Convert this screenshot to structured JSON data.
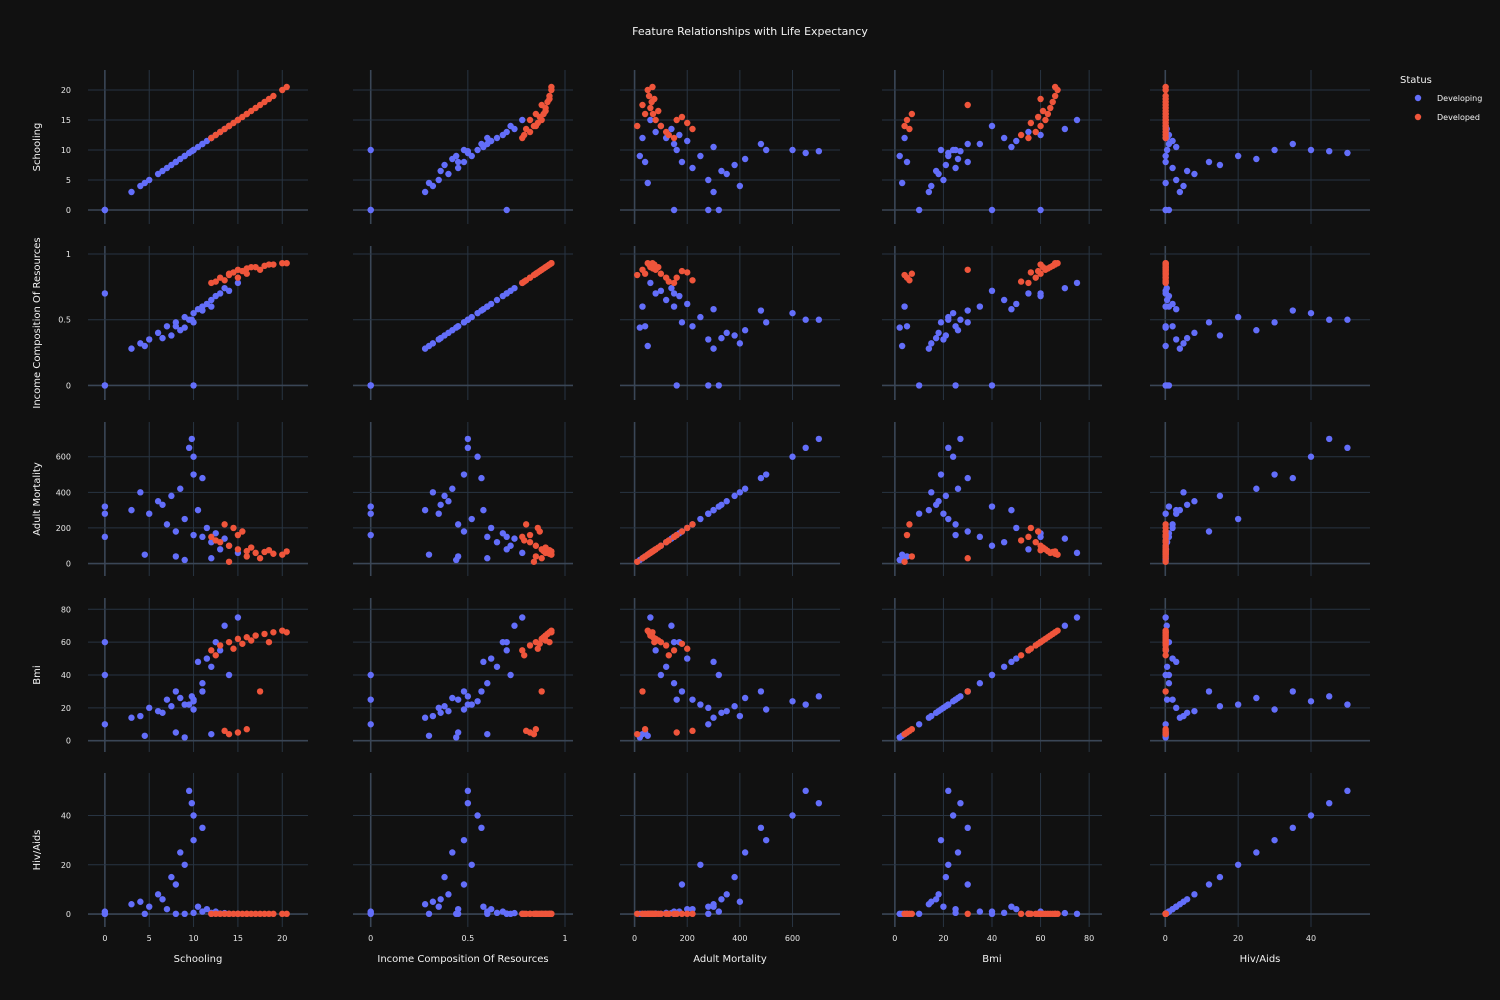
{
  "chart_data": {
    "type": "scatter",
    "title": "Feature Relationships with Life Expectancy",
    "features": [
      {
        "key": "schooling",
        "label": "Schooling",
        "range": [
          -1,
          22
        ],
        "ticks": [
          0,
          5,
          10,
          15,
          20
        ],
        "tick_labels": [
          "0",
          "5",
          "10",
          "15",
          "20"
        ]
      },
      {
        "key": "income",
        "label": "Income Composition Of Resources",
        "range": [
          -0.05,
          1.0
        ],
        "ticks": [
          0,
          0.5,
          1
        ],
        "tick_labels": [
          "0",
          "0.5",
          "1"
        ]
      },
      {
        "key": "adult_mortality",
        "label": "Adult Mortality",
        "range": [
          -25,
          750
        ],
        "ticks": [
          0,
          200,
          400,
          600
        ],
        "tick_labels": [
          "0",
          "200",
          "400",
          "600"
        ]
      },
      {
        "key": "bmi",
        "label": "Bmi",
        "range": [
          -2,
          82
        ],
        "ticks": [
          0,
          20,
          40,
          60,
          80
        ],
        "tick_labels": [
          "0",
          "20",
          "40",
          "60",
          "80"
        ]
      },
      {
        "key": "hiv_aids",
        "label": "Hiv/Aids",
        "range": [
          -2,
          54
        ],
        "ticks": [
          0,
          20,
          40
        ],
        "tick_labels": [
          "0",
          "20",
          "40"
        ]
      }
    ],
    "legend": {
      "title": "Status",
      "placement": "top-right",
      "entries": [
        {
          "name": "Developing",
          "color": "#636efa"
        },
        {
          "name": "Developed",
          "color": "#ef553b"
        }
      ]
    },
    "series": [
      {
        "name": "Developing",
        "color": "#636efa",
        "points": [
          [
            3.0,
            0.28,
            300,
            14,
            4
          ],
          [
            4.0,
            0.32,
            400,
            15,
            5
          ],
          [
            5.0,
            0.35,
            280,
            20,
            3
          ],
          [
            6.0,
            0.4,
            350,
            18,
            8
          ],
          [
            7.0,
            0.45,
            220,
            25,
            2
          ],
          [
            8.0,
            0.48,
            180,
            30,
            12
          ],
          [
            9.0,
            0.52,
            250,
            22,
            20
          ],
          [
            10.0,
            0.55,
            600,
            24,
            40
          ],
          [
            10.0,
            0.48,
            500,
            19,
            30
          ],
          [
            11.0,
            0.6,
            150,
            35,
            1
          ],
          [
            12.0,
            0.65,
            120,
            45,
            0.5
          ],
          [
            13.0,
            0.7,
            80,
            55,
            0.2
          ],
          [
            14.0,
            0.72,
            100,
            40,
            0.1
          ],
          [
            9.5,
            0.5,
            650,
            22,
            50
          ],
          [
            8.5,
            0.42,
            420,
            26,
            25
          ],
          [
            7.5,
            0.38,
            380,
            21,
            15
          ],
          [
            6.5,
            0.36,
            330,
            17,
            6
          ],
          [
            11.5,
            0.62,
            200,
            50,
            2
          ],
          [
            12.5,
            0.68,
            170,
            60,
            1
          ],
          [
            13.5,
            0.74,
            140,
            70,
            0.4
          ],
          [
            15.0,
            0.78,
            60,
            75,
            0.1
          ],
          [
            10.5,
            0.58,
            300,
            48,
            3
          ],
          [
            4.5,
            0.3,
            50,
            3,
            0.1
          ],
          [
            8.0,
            0.45,
            40,
            5,
            0.1
          ],
          [
            12.0,
            0.6,
            30,
            4,
            0.1
          ],
          [
            0,
            0,
            280,
            10,
            0.1
          ],
          [
            0,
            0,
            320,
            40,
            1
          ],
          [
            10,
            0,
            160,
            25,
            0.5
          ],
          [
            0,
            0.7,
            150,
            60,
            0.1
          ],
          [
            9.0,
            0.44,
            20,
            2,
            0.1
          ],
          [
            11.0,
            0.57,
            480,
            30,
            35
          ],
          [
            9.8,
            0.5,
            700,
            27,
            45
          ]
        ]
      },
      {
        "name": "Developed",
        "color": "#ef553b",
        "points": [
          [
            12.0,
            0.78,
            150,
            55,
            0.1
          ],
          [
            13.0,
            0.82,
            120,
            58,
            0.1
          ],
          [
            14.0,
            0.85,
            100,
            60,
            0.1
          ],
          [
            15.0,
            0.88,
            80,
            62,
            0.1
          ],
          [
            16.0,
            0.89,
            70,
            63,
            0.1
          ],
          [
            17.0,
            0.9,
            60,
            64,
            0.1
          ],
          [
            18.0,
            0.91,
            65,
            65,
            0.1
          ],
          [
            19.0,
            0.92,
            55,
            66,
            0.1
          ],
          [
            20.0,
            0.93,
            50,
            67,
            0.1
          ],
          [
            14.5,
            0.86,
            200,
            56,
            0.1
          ],
          [
            15.5,
            0.87,
            180,
            59,
            0.1
          ],
          [
            16.5,
            0.9,
            90,
            61,
            0.1
          ],
          [
            13.5,
            0.8,
            220,
            6,
            0.1
          ],
          [
            15.0,
            0.82,
            160,
            5,
            0.1
          ],
          [
            16.0,
            0.85,
            40,
            7,
            0.1
          ],
          [
            17.5,
            0.88,
            30,
            30,
            0.1
          ],
          [
            14.0,
            0.84,
            10,
            4,
            0.1
          ],
          [
            18.5,
            0.92,
            75,
            60,
            0.1
          ],
          [
            20.5,
            0.93,
            68,
            66,
            0.1
          ],
          [
            12.5,
            0.79,
            130,
            52,
            0.1
          ]
        ]
      }
    ]
  }
}
